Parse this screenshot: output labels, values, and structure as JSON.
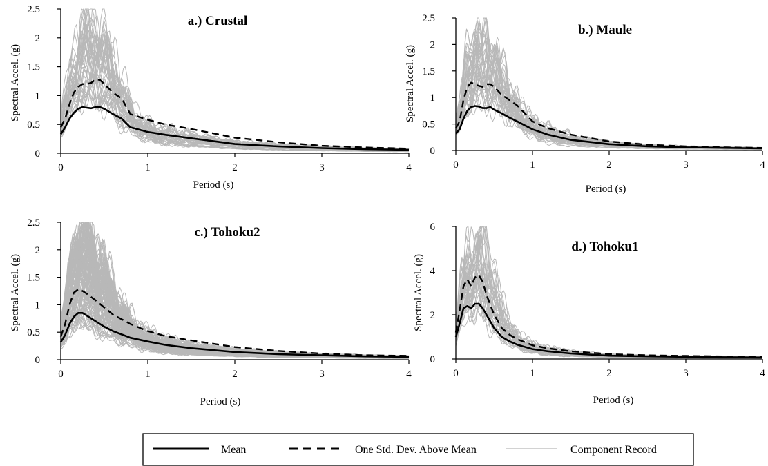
{
  "chart_data": [
    {
      "type": "line",
      "title": "a.) Crustal",
      "xlabel": "Period (s)",
      "ylabel": "Spectral Accel. (g)",
      "xlim": [
        0,
        4
      ],
      "ylim": [
        0,
        2.5
      ],
      "xticks": [
        0,
        1,
        2,
        3,
        4
      ],
      "yticks": [
        0,
        0.5,
        1,
        1.5,
        2,
        2.5
      ],
      "ytick_labels": [
        "0",
        "0.5",
        "1",
        "1.5",
        "2",
        "2.5"
      ],
      "record_count": 44,
      "record_peak_range": [
        0.9,
        2.25
      ],
      "series": [
        {
          "legend_key": "mean",
          "x": [
            0,
            0.05,
            0.1,
            0.15,
            0.2,
            0.25,
            0.3,
            0.35,
            0.4,
            0.45,
            0.5,
            0.6,
            0.7,
            0.8,
            1.0,
            1.2,
            1.5,
            2.0,
            2.5,
            3.0,
            3.5,
            4.0
          ],
          "y": [
            0.33,
            0.45,
            0.6,
            0.7,
            0.77,
            0.8,
            0.79,
            0.78,
            0.8,
            0.8,
            0.77,
            0.68,
            0.6,
            0.45,
            0.37,
            0.32,
            0.26,
            0.16,
            0.12,
            0.09,
            0.07,
            0.06
          ]
        },
        {
          "legend_key": "std",
          "x": [
            0,
            0.05,
            0.1,
            0.15,
            0.2,
            0.25,
            0.3,
            0.35,
            0.4,
            0.45,
            0.5,
            0.6,
            0.7,
            0.8,
            1.0,
            1.2,
            1.5,
            2.0,
            2.5,
            3.0,
            3.5,
            4.0
          ],
          "y": [
            0.45,
            0.6,
            0.85,
            1.05,
            1.15,
            1.2,
            1.2,
            1.22,
            1.28,
            1.27,
            1.2,
            1.05,
            0.95,
            0.68,
            0.58,
            0.5,
            0.42,
            0.27,
            0.19,
            0.13,
            0.1,
            0.08
          ]
        }
      ]
    },
    {
      "type": "line",
      "title": "b.) Maule",
      "xlabel": "Period (s)",
      "ylabel": "Spectral Accel. (g)",
      "xlim": [
        0,
        4
      ],
      "ylim": [
        0,
        2.5
      ],
      "xticks": [
        0,
        1,
        2,
        3,
        4
      ],
      "yticks": [
        0,
        0.5,
        1,
        1.5,
        2,
        2.5
      ],
      "ytick_labels": [
        "0",
        "0.5",
        "1",
        "1.5",
        "2",
        "2.5"
      ],
      "record_count": 40,
      "record_peak_range": [
        0.8,
        2.35
      ],
      "series": [
        {
          "legend_key": "mean",
          "x": [
            0,
            0.05,
            0.1,
            0.15,
            0.2,
            0.25,
            0.3,
            0.35,
            0.4,
            0.45,
            0.5,
            0.6,
            0.7,
            0.8,
            1.0,
            1.2,
            1.5,
            2.0,
            2.5,
            3.0,
            3.5,
            4.0
          ],
          "y": [
            0.32,
            0.4,
            0.6,
            0.75,
            0.82,
            0.84,
            0.83,
            0.8,
            0.8,
            0.82,
            0.77,
            0.7,
            0.62,
            0.55,
            0.4,
            0.3,
            0.2,
            0.12,
            0.08,
            0.06,
            0.05,
            0.04
          ]
        },
        {
          "legend_key": "std",
          "x": [
            0,
            0.05,
            0.1,
            0.15,
            0.2,
            0.25,
            0.3,
            0.35,
            0.4,
            0.45,
            0.5,
            0.6,
            0.7,
            0.8,
            1.0,
            1.2,
            1.5,
            2.0,
            2.5,
            3.0,
            3.5,
            4.0
          ],
          "y": [
            0.42,
            0.55,
            0.95,
            1.2,
            1.28,
            1.25,
            1.22,
            1.2,
            1.25,
            1.25,
            1.2,
            1.05,
            0.95,
            0.85,
            0.55,
            0.42,
            0.3,
            0.17,
            0.11,
            0.08,
            0.06,
            0.05
          ]
        }
      ]
    },
    {
      "type": "line",
      "title": "c.) Tohoku2",
      "xlabel": "Period (s)",
      "ylabel": "Spectral Accel. (g)",
      "xlim": [
        0,
        4
      ],
      "ylim": [
        0,
        2.5
      ],
      "xticks": [
        0,
        1,
        2,
        3,
        4
      ],
      "yticks": [
        0,
        0.5,
        1,
        1.5,
        2,
        2.5
      ],
      "ytick_labels": [
        "0",
        "0.5",
        "1",
        "1.5",
        "2",
        "2.5"
      ],
      "record_count": 120,
      "record_peak_range": [
        0.7,
        2.6
      ],
      "series": [
        {
          "legend_key": "mean",
          "x": [
            0,
            0.05,
            0.1,
            0.15,
            0.2,
            0.25,
            0.3,
            0.4,
            0.5,
            0.6,
            0.8,
            1.0,
            1.2,
            1.5,
            2.0,
            2.5,
            3.0,
            3.5,
            4.0
          ],
          "y": [
            0.32,
            0.45,
            0.65,
            0.78,
            0.85,
            0.85,
            0.8,
            0.7,
            0.6,
            0.52,
            0.4,
            0.33,
            0.27,
            0.21,
            0.14,
            0.1,
            0.08,
            0.06,
            0.05
          ]
        },
        {
          "legend_key": "std",
          "x": [
            0,
            0.05,
            0.1,
            0.15,
            0.2,
            0.25,
            0.3,
            0.4,
            0.5,
            0.6,
            0.8,
            1.0,
            1.2,
            1.5,
            2.0,
            2.5,
            3.0,
            3.5,
            4.0
          ],
          "y": [
            0.42,
            0.65,
            1.0,
            1.22,
            1.28,
            1.25,
            1.2,
            1.08,
            0.95,
            0.82,
            0.65,
            0.52,
            0.43,
            0.35,
            0.23,
            0.16,
            0.11,
            0.08,
            0.07
          ]
        }
      ]
    },
    {
      "type": "line",
      "title": "d.) Tohoku1",
      "xlabel": "Period (s)",
      "ylabel": "Spectral Accel. (g)",
      "xlim": [
        0,
        4
      ],
      "ylim": [
        0,
        6
      ],
      "xticks": [
        0,
        1,
        2,
        3,
        4
      ],
      "yticks": [
        0,
        2,
        4,
        6
      ],
      "ytick_labels": [
        "0",
        "2",
        "4",
        "6"
      ],
      "record_count": 40,
      "record_peak_range": [
        2.0,
        5.7
      ],
      "series": [
        {
          "legend_key": "mean",
          "x": [
            0,
            0.05,
            0.1,
            0.15,
            0.2,
            0.25,
            0.3,
            0.35,
            0.4,
            0.5,
            0.6,
            0.7,
            0.8,
            1.0,
            1.2,
            1.5,
            2.0,
            2.5,
            3.0,
            3.5,
            4.0
          ],
          "y": [
            1.0,
            1.6,
            2.3,
            2.4,
            2.3,
            2.5,
            2.5,
            2.3,
            2.0,
            1.4,
            1.0,
            0.8,
            0.65,
            0.45,
            0.35,
            0.25,
            0.15,
            0.12,
            0.1,
            0.08,
            0.07
          ]
        },
        {
          "legend_key": "std",
          "x": [
            0,
            0.05,
            0.1,
            0.15,
            0.2,
            0.25,
            0.3,
            0.35,
            0.4,
            0.5,
            0.6,
            0.7,
            0.8,
            1.0,
            1.2,
            1.5,
            2.0,
            2.5,
            3.0,
            3.5,
            4.0
          ],
          "y": [
            1.2,
            2.2,
            3.3,
            3.6,
            3.3,
            3.7,
            3.8,
            3.5,
            2.9,
            2.0,
            1.4,
            1.1,
            0.9,
            0.62,
            0.48,
            0.35,
            0.22,
            0.17,
            0.14,
            0.12,
            0.1
          ]
        }
      ]
    }
  ],
  "legend": {
    "position": "bottom-center",
    "items": [
      {
        "key": "mean",
        "label": "Mean",
        "style": "solid-thick"
      },
      {
        "key": "std",
        "label": "One Std. Dev. Above Mean",
        "style": "dashed-thick"
      },
      {
        "key": "record",
        "label": "Component Record",
        "style": "thin-gray"
      }
    ]
  },
  "colors": {
    "mean": "#000000",
    "std": "#000000",
    "record": "#b8b8b8",
    "axis": "#000000"
  }
}
